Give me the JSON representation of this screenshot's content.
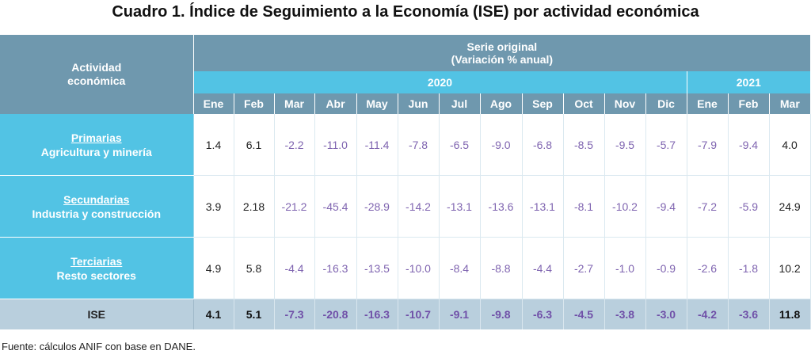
{
  "title": "Cuadro 1. Índice de Seguimiento a la Economía (ISE) por actividad económica",
  "header": {
    "activity_line1": "Actividad",
    "activity_line2": "económica",
    "serie_line1": "Serie original",
    "serie_line2": "(Variación % anual)",
    "years": [
      "2020",
      "2021"
    ],
    "months": [
      "Ene",
      "Feb",
      "Mar",
      "Abr",
      "May",
      "Jun",
      "Jul",
      "Ago",
      "Sep",
      "Oct",
      "Nov",
      "Dic",
      "Ene",
      "Feb",
      "Mar"
    ]
  },
  "rows": [
    {
      "category": "Primarias",
      "subtitle": "Agricultura y minería",
      "values": [
        "1.4",
        "6.1",
        "-2.2",
        "-11.0",
        "-11.4",
        "-7.8",
        "-6.5",
        "-9.0",
        "-6.8",
        "-8.5",
        "-9.5",
        "-5.7",
        "-7.9",
        "-9.4",
        "4.0"
      ]
    },
    {
      "category": "Secundarias",
      "subtitle": "Industria y construcción",
      "values": [
        "3.9",
        "2.18",
        "-21.2",
        "-45.4",
        "-28.9",
        "-14.2",
        "-13.1",
        "-13.6",
        "-13.1",
        "-8.1",
        "-10.2",
        "-9.4",
        "-7.2",
        "-5.9",
        "24.9"
      ]
    },
    {
      "category": "Terciarias",
      "subtitle": "Resto sectores",
      "values": [
        "4.9",
        "5.8",
        "-4.4",
        "-16.3",
        "-13.5",
        "-10.0",
        "-8.4",
        "-8.8",
        "-4.4",
        "-2.7",
        "-1.0",
        "-0.9",
        "-2.6",
        "-1.8",
        "10.2"
      ]
    }
  ],
  "total": {
    "label": "ISE",
    "values": [
      "4.1",
      "5.1",
      "-7.3",
      "-20.8",
      "-16.3",
      "-10.7",
      "-9.1",
      "-9.8",
      "-6.3",
      "-4.5",
      "-3.8",
      "-3.0",
      "-4.2",
      "-3.6",
      "11.8"
    ]
  },
  "source": "Fuente: cálculos ANIF con base en DANE."
}
